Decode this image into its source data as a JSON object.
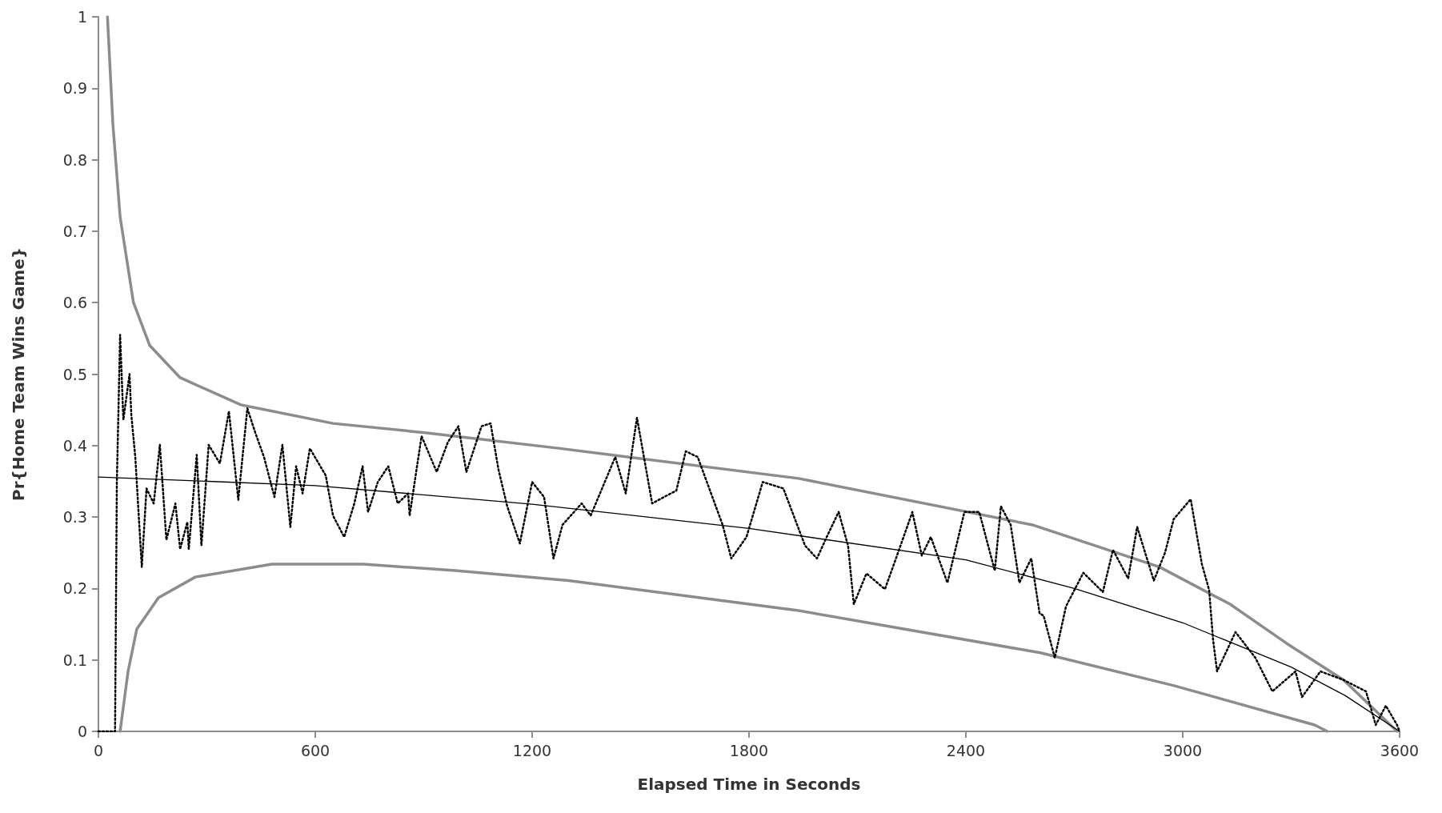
{
  "chart_data": {
    "type": "line",
    "xlabel": "Elapsed Time in Seconds",
    "ylabel": "Pr{Home Team Wins Game}",
    "xlim": [
      0,
      3600
    ],
    "xticks": [
      0,
      600,
      1200,
      1800,
      2400,
      3000,
      3600
    ],
    "ylim": [
      0,
      1
    ],
    "yticks": [
      0,
      0.1,
      0.2,
      0.3,
      0.4,
      0.5,
      0.6,
      0.7,
      0.8,
      0.9,
      1
    ],
    "grid": false,
    "marker": "none",
    "series": [
      {
        "color": "#8c8c8c",
        "line_style": "solid",
        "x": [
          25,
          40,
          60,
          97,
          142,
          226,
          394,
          649,
          903,
          1277,
          1937,
          2584,
          2936,
          3131,
          3288,
          3445,
          3593
        ],
        "values": [
          1,
          0.85,
          0.72,
          0.6,
          0.54,
          0.495,
          0.457,
          0.431,
          0.418,
          0.396,
          0.354,
          0.289,
          0.23,
          0.178,
          0.123,
          0.072,
          0
        ]
      },
      {
        "color": "#8c8c8c",
        "line_style": "solid",
        "x": [
          60,
          82,
          106,
          166,
          268,
          480,
          733,
          987,
          1300,
          1937,
          2606,
          2976,
          3365,
          3400
        ],
        "values": [
          0,
          0.084,
          0.143,
          0.187,
          0.216,
          0.234,
          0.234,
          0.225,
          0.211,
          0.169,
          0.11,
          0.064,
          0.009,
          0
        ]
      },
      {
        "color": "#000000",
        "line_style": "solid",
        "x": [
          0,
          600,
          1200,
          1800,
          2400,
          2700,
          3000,
          3300,
          3450,
          3600
        ],
        "values": [
          0.356,
          0.344,
          0.318,
          0.284,
          0.24,
          0.2,
          0.152,
          0.09,
          0.05,
          0
        ]
      },
      {
        "color": "#000000",
        "line_style": "dotted",
        "x": [
          0,
          46,
          51,
          60,
          69,
          86,
          91,
          102,
          120,
          133,
          153,
          170,
          188,
          213,
          226,
          246,
          250,
          272,
          285,
          305,
          336,
          361,
          387,
          412,
          434,
          458,
          487,
          509,
          531,
          547,
          565,
          585,
          629,
          649,
          680,
          708,
          731,
          746,
          773,
          802,
          828,
          857,
          861,
          894,
          936,
          967,
          996,
          1018,
          1060,
          1085,
          1107,
          1131,
          1166,
          1200,
          1233,
          1259,
          1284,
          1337,
          1362,
          1430,
          1459,
          1490,
          1532,
          1565,
          1599,
          1625,
          1658,
          1727,
          1751,
          1793,
          1838,
          1895,
          1955,
          1988,
          2015,
          2048,
          2074,
          2090,
          2125,
          2176,
          2201,
          2252,
          2278,
          2303,
          2349,
          2396,
          2437,
          2480,
          2497,
          2524,
          2548,
          2581,
          2604,
          2615,
          2646,
          2677,
          2725,
          2779,
          2807,
          2849,
          2874,
          2920,
          2951,
          2975,
          3022,
          3053,
          3073,
          3084,
          3095,
          3146,
          3201,
          3248,
          3312,
          3330,
          3381,
          3445,
          3507,
          3534,
          3562,
          3593,
          3600
        ],
        "values": [
          0,
          0,
          0.349,
          0.555,
          0.436,
          0.5,
          0.443,
          0.384,
          0.23,
          0.34,
          0.319,
          0.401,
          0.268,
          0.319,
          0.255,
          0.293,
          0.255,
          0.387,
          0.26,
          0.401,
          0.375,
          0.448,
          0.324,
          0.452,
          0.418,
          0.384,
          0.328,
          0.401,
          0.286,
          0.371,
          0.333,
          0.396,
          0.358,
          0.302,
          0.272,
          0.319,
          0.371,
          0.307,
          0.349,
          0.371,
          0.319,
          0.333,
          0.302,
          0.413,
          0.363,
          0.405,
          0.427,
          0.363,
          0.427,
          0.431,
          0.366,
          0.315,
          0.263,
          0.349,
          0.328,
          0.242,
          0.289,
          0.319,
          0.302,
          0.384,
          0.333,
          0.439,
          0.319,
          0.328,
          0.337,
          0.392,
          0.384,
          0.289,
          0.242,
          0.272,
          0.349,
          0.34,
          0.26,
          0.242,
          0.272,
          0.307,
          0.26,
          0.178,
          0.221,
          0.199,
          0.234,
          0.307,
          0.246,
          0.272,
          0.208,
          0.307,
          0.307,
          0.225,
          0.315,
          0.289,
          0.208,
          0.242,
          0.165,
          0.162,
          0.103,
          0.175,
          0.222,
          0.195,
          0.254,
          0.214,
          0.286,
          0.211,
          0.25,
          0.297,
          0.325,
          0.234,
          0.198,
          0.128,
          0.084,
          0.139,
          0.103,
          0.056,
          0.084,
          0.048,
          0.084,
          0.072,
          0.056,
          0.009,
          0.036,
          0.009,
          0
        ]
      }
    ]
  }
}
